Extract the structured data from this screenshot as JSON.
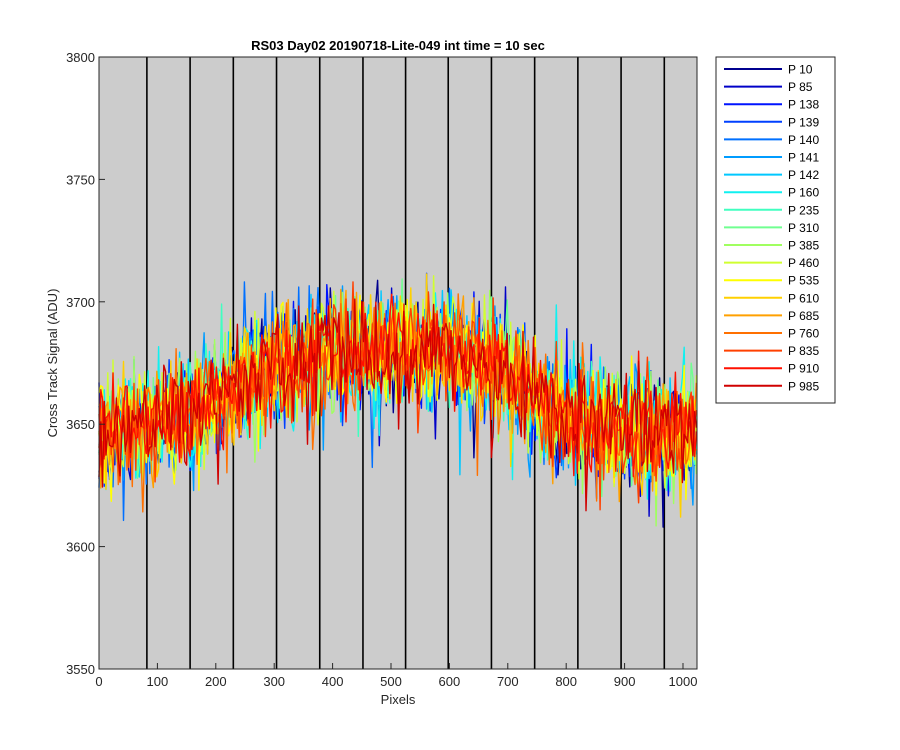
{
  "chart_data": {
    "type": "line",
    "title": "RS03 Day02 20190718-Lite-049 int time = 10 sec",
    "xlabel": "Pixels",
    "ylabel": "Cross Track Signal (ADU)",
    "xlim": [
      0,
      1024
    ],
    "ylim": [
      3550,
      3800
    ],
    "xticks": [
      0,
      100,
      200,
      300,
      400,
      500,
      600,
      700,
      800,
      900,
      1000
    ],
    "yticks": [
      3550,
      3600,
      3650,
      3700,
      3750,
      3800
    ],
    "background_color": "#cccccc",
    "legend_position": "outside-right-top",
    "segment_boundaries": [
      0,
      82,
      156,
      230,
      304,
      378,
      452,
      525,
      598,
      672,
      746,
      820,
      894,
      968,
      1024
    ],
    "baseline_profile": {
      "x": [
        0,
        100,
        200,
        250,
        300,
        400,
        500,
        600,
        700,
        750,
        800,
        900,
        1024
      ],
      "y": [
        3645,
        3650,
        3660,
        3668,
        3675,
        3680,
        3680,
        3679,
        3672,
        3660,
        3652,
        3648,
        3645
      ]
    },
    "noise_amplitude_adu": 20,
    "series": [
      {
        "name": "P 10",
        "color": "#00008f"
      },
      {
        "name": "P 85",
        "color": "#0000c8"
      },
      {
        "name": "P 138",
        "color": "#0014ff"
      },
      {
        "name": "P 139",
        "color": "#0040ff"
      },
      {
        "name": "P 140",
        "color": "#0070ff"
      },
      {
        "name": "P 141",
        "color": "#009cff"
      },
      {
        "name": "P 142",
        "color": "#00c8ff"
      },
      {
        "name": "P 160",
        "color": "#10f0f0"
      },
      {
        "name": "P 235",
        "color": "#40ffc0"
      },
      {
        "name": "P 310",
        "color": "#70ff90"
      },
      {
        "name": "P 385",
        "color": "#a0ff60"
      },
      {
        "name": "P 460",
        "color": "#d0ff30"
      },
      {
        "name": "P 535",
        "color": "#ffff00"
      },
      {
        "name": "P 610",
        "color": "#ffd000"
      },
      {
        "name": "P 685",
        "color": "#ffa000"
      },
      {
        "name": "P 760",
        "color": "#ff7000"
      },
      {
        "name": "P 835",
        "color": "#ff4000"
      },
      {
        "name": "P 910",
        "color": "#ff1000"
      },
      {
        "name": "P 985",
        "color": "#d00000"
      }
    ]
  }
}
